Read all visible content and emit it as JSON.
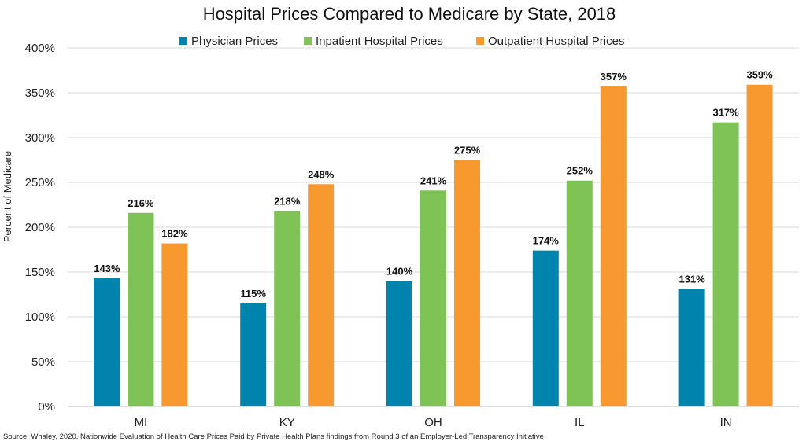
{
  "chart_data": {
    "type": "bar",
    "title": "Hospital Prices Compared to Medicare by State, 2018",
    "xlabel": "",
    "ylabel": "Percent of Medicare",
    "categories": [
      "MI",
      "KY",
      "OH",
      "IL",
      "IN"
    ],
    "series": [
      {
        "name": "Physician Prices",
        "color": "#0083ad",
        "values": [
          143,
          115,
          140,
          174,
          131
        ],
        "labels": [
          "143%",
          "115%",
          "140%",
          "174%",
          "131%"
        ]
      },
      {
        "name": "Inpatient Hospital Prices",
        "color": "#7fc356",
        "values": [
          216,
          218,
          241,
          252,
          317
        ],
        "labels": [
          "216%",
          "218%",
          "241%",
          "252%",
          "317%"
        ]
      },
      {
        "name": "Outpatient Hospital Prices",
        "color": "#f7992f",
        "values": [
          182,
          248,
          275,
          357,
          359
        ],
        "labels": [
          "182%",
          "248%",
          "275%",
          "357%",
          "359%"
        ]
      }
    ],
    "ylim": [
      0,
      400
    ],
    "yticks": [
      0,
      50,
      100,
      150,
      200,
      250,
      300,
      350,
      400
    ],
    "ytick_labels": [
      "0%",
      "50%",
      "100%",
      "150%",
      "200%",
      "250%",
      "300%",
      "350%",
      "400%"
    ],
    "grid": true,
    "legend_position": "top-center"
  },
  "source_note": "Source: Whaley, 2020, Nationwide Evaluation of Health Care Prices Paid by Private Health Plans findings from Round 3 of an Employer-Led Transparency Initiative"
}
